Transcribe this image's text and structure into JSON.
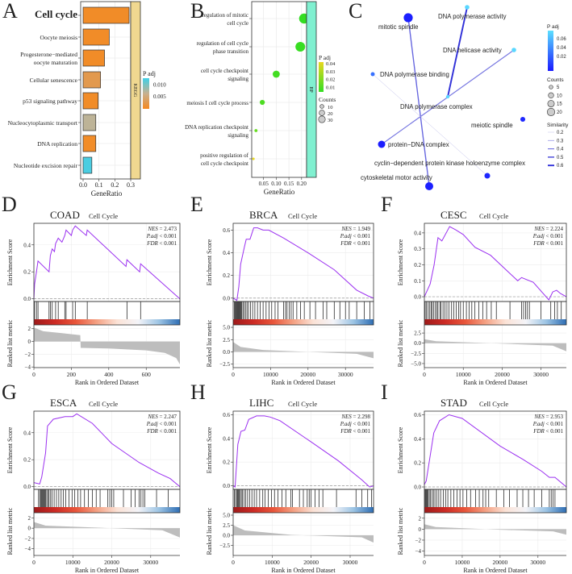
{
  "panel_a": {
    "label": "A",
    "chart_data": {
      "type": "bar",
      "orientation": "horizontal",
      "categories": [
        [
          "Cell cycle"
        ],
        [
          "Oocyte meiosis"
        ],
        [
          "Progesterone−mediated",
          "oocyte maturation"
        ],
        [
          "Cellular senescence"
        ],
        [
          "p53 signaling pathway"
        ],
        [
          "Nucleocytoplasmic transport"
        ],
        [
          "DNA replication"
        ],
        [
          "Nucleotide excision repair"
        ]
      ],
      "values": [
        0.29,
        0.165,
        0.135,
        0.11,
        0.095,
        0.08,
        0.08,
        0.055
      ],
      "p_adj": [
        0.001,
        0.001,
        0.001,
        0.003,
        0.001,
        0.007,
        0.001,
        0.012
      ],
      "highlight_index": 0,
      "highlight_color": "#c0202a",
      "xlabel": "GeneRatio",
      "xticks": [
        "0.0",
        "0.1",
        "0.2",
        "0.3"
      ],
      "xtick_values": [
        0,
        0.1,
        0.2,
        0.3
      ],
      "strip_label": "KEGG",
      "strip_color": "#f0d890",
      "legend": {
        "title": "P adj",
        "ticks": [
          "0.010",
          "0.005"
        ],
        "tick_values": [
          0.01,
          0.005
        ],
        "low_color": "#f5891f",
        "mid_color": "#c8b090",
        "high_color": "#40d0e8",
        "range": [
          0.0005,
          0.0125
        ]
      }
    }
  },
  "panel_b": {
    "label": "B",
    "chart_data": {
      "type": "scatter",
      "categories": [
        [
          "regulation of mitotic",
          "cell cycle"
        ],
        [
          "regulation of cell cycle",
          "phase transition"
        ],
        [
          "cell cycle checkpoint",
          "signaling"
        ],
        [
          "meiosis I cell cycle process"
        ],
        [
          "DNA replication checkpoint",
          "signaling"
        ],
        [
          "positive regulation of",
          "cell cycle checkpoint"
        ]
      ],
      "gene_ratio": [
        0.21,
        0.195,
        0.1,
        0.045,
        0.02,
        0.01
      ],
      "counts": [
        32,
        30,
        16,
        8,
        3,
        2
      ],
      "p_adj": [
        0.005,
        0.006,
        0.008,
        0.01,
        0.015,
        0.04
      ],
      "xlabel": "GeneRatio",
      "xticks": [
        "0.05",
        "0.10",
        "0.15",
        "0.20"
      ],
      "xtick_values": [
        0.05,
        0.1,
        0.15,
        0.2
      ],
      "strip_label": "BP",
      "strip_color": "#80f0d0",
      "legend": {
        "title": "P adj",
        "ticks": [
          "0.04",
          "0.03",
          "0.02",
          "0.01"
        ],
        "tick_values": [
          0.04,
          0.03,
          0.02,
          0.01
        ],
        "low_color": "#33dd22",
        "high_color": "#e8d820",
        "counts_title": "Counts",
        "counts": [
          "10",
          "20",
          "30"
        ],
        "count_values": [
          10,
          20,
          30
        ]
      }
    }
  },
  "panel_c": {
    "label": "C",
    "nodes": [
      {
        "name": "mitotic spindle",
        "p_adj": 0.002,
        "count": 20
      },
      {
        "name": "DNA polymerase activity",
        "p_adj": 0.065,
        "count": 5
      },
      {
        "name": "DNA helicase activity",
        "p_adj": 0.065,
        "count": 5
      },
      {
        "name": "DNA polymerase binding",
        "p_adj": 0.03,
        "count": 4
      },
      {
        "name": "DNA polymerase complex",
        "p_adj": 0.065,
        "count": 3
      },
      {
        "name": "meiotic spindle",
        "p_adj": 0.005,
        "count": 6
      },
      {
        "name": "protein−DNA complex",
        "p_adj": 0.001,
        "count": 13
      },
      {
        "name": "cyclin−dependent protein kinase holoenzyme complex",
        "p_adj": 0.004,
        "count": 8
      },
      {
        "name": "cytoskeletal motor activity",
        "p_adj": 0.002,
        "count": 16
      }
    ],
    "edges": [
      {
        "source": 0,
        "target": 8,
        "similarity": 0.45
      },
      {
        "source": 1,
        "target": 4,
        "similarity": 0.6
      },
      {
        "source": 2,
        "target": 6,
        "similarity": 0.4
      },
      {
        "source": 3,
        "target": 7,
        "similarity": 0.2
      }
    ],
    "legend": {
      "padj_title": "P adj",
      "padj_ticks": [
        "0.06",
        "0.04",
        "0.02"
      ],
      "padj_values": [
        0.06,
        0.04,
        0.02
      ],
      "low_color": "#1a1aff",
      "high_color": "#5ce0ff",
      "counts_title": "Counts",
      "counts": [
        "5",
        "10",
        "15",
        "20"
      ],
      "count_values": [
        5,
        10,
        15,
        20
      ],
      "similarity_title": "Similarity",
      "similarity": [
        "0.2",
        "0.3",
        "0.4",
        "0.5",
        "0.6"
      ],
      "similarity_values": [
        0.2,
        0.3,
        0.4,
        0.5,
        0.6
      ]
    }
  },
  "gsea_common": {
    "gene_set": "Cell Cycle",
    "es_label": "Enrichment Score",
    "rank_label": "Ranked list metric",
    "xlabel": "Rank in Ordered Dataset",
    "nes_label": "NES",
    "padj_label": "P.adj",
    "fdr_label": "FDR",
    "curve_color": "#9b30f0",
    "heat_colors": [
      "#9e1a1a",
      "#cc2a24",
      "#e8553a",
      "#f4a082",
      "#fbe2d6",
      "#f4f4f8",
      "#9cc4e4",
      "#2e6db3"
    ]
  },
  "gsea": [
    {
      "label": "D",
      "cancer": "COAD",
      "nes": "= 2.473",
      "padj": "< 0.001",
      "fdr": "< 0.001",
      "n": 780,
      "xticks": [
        0,
        200,
        400,
        600
      ],
      "es_ylim": [
        -0.02,
        0.56
      ],
      "es_ticks": [
        0.0,
        0.2,
        0.4
      ],
      "es_points": [
        [
          0,
          0
        ],
        [
          4,
          0.11
        ],
        [
          14,
          0.2
        ],
        [
          22,
          0.28
        ],
        [
          81,
          0.2
        ],
        [
          88,
          0.32
        ],
        [
          98,
          0.37
        ],
        [
          110,
          0.35
        ],
        [
          116,
          0.41
        ],
        [
          130,
          0.45
        ],
        [
          150,
          0.42
        ],
        [
          165,
          0.47
        ],
        [
          172,
          0.51
        ],
        [
          200,
          0.47
        ],
        [
          207,
          0.51
        ],
        [
          221,
          0.54
        ],
        [
          280,
          0.47
        ],
        [
          285,
          0.51
        ],
        [
          492,
          0.24
        ],
        [
          497,
          0.29
        ],
        [
          565,
          0.2
        ],
        [
          570,
          0.26
        ],
        [
          780,
          0
        ]
      ],
      "hits": [
        4,
        14,
        22,
        81,
        88,
        98,
        116,
        130,
        165,
        172,
        207,
        221,
        285,
        497,
        570
      ],
      "rank_ylim": [
        -4.1,
        2.6
      ],
      "rank_ticks": [
        -4,
        -2,
        0,
        2
      ],
      "rank_points": [
        [
          0,
          2.2
        ],
        [
          50,
          1.6
        ],
        [
          150,
          1.3
        ],
        [
          248,
          1.0
        ],
        [
          250,
          -1
        ],
        [
          400,
          -1.1
        ],
        [
          600,
          -1.4
        ],
        [
          700,
          -1.8
        ],
        [
          760,
          -2.6
        ],
        [
          780,
          -3.6
        ]
      ]
    },
    {
      "label": "E",
      "cancer": "BRCA",
      "nes": "= 1.949",
      "padj": "< 0.001",
      "fdr": "< 0.001",
      "n": 37500,
      "xticks": [
        0,
        10000,
        20000,
        30000
      ],
      "es_ylim": [
        -0.03,
        0.66
      ],
      "es_ticks": [
        0.0,
        0.2,
        0.4,
        0.6
      ],
      "es_points": [
        [
          0,
          0
        ],
        [
          1000,
          -0.02
        ],
        [
          1500,
          0.1
        ],
        [
          2000,
          0.3
        ],
        [
          3000,
          0.45
        ],
        [
          3500,
          0.52
        ],
        [
          4500,
          0.52
        ],
        [
          5500,
          0.62
        ],
        [
          6500,
          0.62
        ],
        [
          8000,
          0.6
        ],
        [
          9500,
          0.6
        ],
        [
          13500,
          0.53
        ],
        [
          20000,
          0.4
        ],
        [
          27000,
          0.25
        ],
        [
          33000,
          0.07
        ],
        [
          36000,
          0.02
        ],
        [
          37500,
          0
        ]
      ],
      "hits": [
        300,
        500,
        700,
        900,
        1100,
        1300,
        1500,
        1700,
        1900,
        2100,
        2300,
        2600,
        2900,
        3300,
        3700,
        4100,
        4600,
        5200,
        5800,
        6500,
        7200,
        8000,
        8800,
        9600,
        10300,
        11200,
        12000,
        13500,
        14000,
        14400,
        15000,
        15500,
        16000,
        17000,
        18000,
        19000,
        20500,
        22000,
        24000,
        25000,
        27000,
        28500,
        30000,
        31000,
        33000,
        35000,
        36500
      ],
      "rank_ylim": [
        -3.2,
        5.5
      ],
      "rank_ticks": [
        -2.5,
        0.0,
        2.5,
        5.0
      ],
      "rank_points": [
        [
          0,
          2
        ],
        [
          2000,
          1
        ],
        [
          8000,
          0.4
        ],
        [
          20000,
          0
        ],
        [
          33000,
          -0.4
        ],
        [
          37500,
          -1.3
        ]
      ]
    },
    {
      "label": "F",
      "cancer": "CESC",
      "nes": "= 2.224",
      "padj": "< 0.001",
      "fdr": "< 0.001",
      "n": 36500,
      "xticks": [
        0,
        10000,
        20000,
        30000
      ],
      "es_ylim": [
        -0.03,
        0.46
      ],
      "es_ticks": [
        0.0,
        0.1,
        0.2,
        0.3,
        0.4
      ],
      "es_points": [
        [
          0,
          0
        ],
        [
          1500,
          0.08
        ],
        [
          2500,
          0.2
        ],
        [
          3500,
          0.37
        ],
        [
          4500,
          0.35
        ],
        [
          6500,
          0.44
        ],
        [
          8000,
          0.42
        ],
        [
          10000,
          0.39
        ],
        [
          13000,
          0.31
        ],
        [
          17000,
          0.26
        ],
        [
          24000,
          0.1
        ],
        [
          25000,
          0.12
        ],
        [
          28000,
          0.09
        ],
        [
          32000,
          -0.02
        ],
        [
          33000,
          0.03
        ],
        [
          34000,
          0.04
        ],
        [
          35000,
          0.02
        ],
        [
          36500,
          0
        ]
      ],
      "hits": [
        200,
        500,
        900,
        1300,
        1700,
        2000,
        2400,
        2800,
        3200,
        3500,
        4000,
        4300,
        4800,
        5300,
        5800,
        6300,
        7000,
        7600,
        8200,
        8800,
        9300,
        10000,
        10800,
        11500,
        12200,
        13000,
        14000,
        15000,
        16000,
        17200,
        18500,
        22000,
        25000,
        25500,
        26000,
        26500,
        27000,
        30000,
        32500,
        33500,
        34200,
        35200
      ],
      "rank_ylim": [
        -6,
        4.5
      ],
      "rank_ticks": [
        -5.0,
        -2.5,
        0.0,
        2.5
      ],
      "rank_points": [
        [
          0,
          1
        ],
        [
          3000,
          0.5
        ],
        [
          20000,
          -0.1
        ],
        [
          33000,
          -0.6
        ],
        [
          36500,
          -2
        ]
      ]
    },
    {
      "label": "G",
      "cancer": "ESCA",
      "nes": "= 2.247",
      "padj": "< 0.001",
      "fdr": "< 0.001",
      "n": 37500,
      "xticks": [
        0,
        10000,
        20000,
        30000
      ],
      "es_ylim": [
        -0.02,
        0.56
      ],
      "es_ticks": [
        0.0,
        0.2,
        0.4
      ],
      "es_points": [
        [
          0,
          0.03
        ],
        [
          1500,
          0.02
        ],
        [
          2000,
          0.07
        ],
        [
          3000,
          0.25
        ],
        [
          3500,
          0.45
        ],
        [
          5000,
          0.5
        ],
        [
          8000,
          0.52
        ],
        [
          10000,
          0.52
        ],
        [
          11000,
          0.54
        ],
        [
          15000,
          0.47
        ],
        [
          20000,
          0.32
        ],
        [
          27000,
          0.18
        ],
        [
          32000,
          0.1
        ],
        [
          35000,
          0.06
        ],
        [
          37500,
          0
        ]
      ],
      "hits": [
        1200,
        1500,
        1800,
        2000,
        2200,
        2400,
        2600,
        2800,
        3000,
        3300,
        3600,
        3900,
        4300,
        4700,
        5200,
        5800,
        6400,
        7000,
        7600,
        8200,
        9000,
        9800,
        10500,
        11300,
        12000,
        13000,
        14000,
        15000,
        16000,
        17000,
        19000,
        19500,
        20000,
        20500,
        23000,
        25000,
        26000,
        27000,
        27500,
        28000,
        28500,
        31500,
        34500
      ],
      "rank_ylim": [
        -5.3,
        3
      ],
      "rank_ticks": [
        -4,
        -2,
        0,
        2
      ],
      "rank_points": [
        [
          0,
          1.2
        ],
        [
          3000,
          0.5
        ],
        [
          20000,
          0
        ],
        [
          33000,
          -0.4
        ],
        [
          37500,
          -1.8
        ]
      ]
    },
    {
      "label": "H",
      "cancer": "LIHC",
      "nes": "= 2.298",
      "padj": "< 0.001",
      "fdr": "< 0.001",
      "n": 36000,
      "xticks": [
        0,
        10000,
        20000,
        30000
      ],
      "es_ylim": [
        -0.03,
        0.63
      ],
      "es_ticks": [
        0.0,
        0.2,
        0.4,
        0.6
      ],
      "es_points": [
        [
          0,
          0
        ],
        [
          500,
          -0.01
        ],
        [
          1200,
          0.35
        ],
        [
          2000,
          0.46
        ],
        [
          3000,
          0.47
        ],
        [
          4000,
          0.56
        ],
        [
          6000,
          0.59
        ],
        [
          8000,
          0.59
        ],
        [
          9500,
          0.58
        ],
        [
          12000,
          0.55
        ],
        [
          20000,
          0.37
        ],
        [
          27000,
          0.21
        ],
        [
          33000,
          0.05
        ],
        [
          35000,
          -0.01
        ],
        [
          36000,
          0
        ]
      ],
      "hits": [
        300,
        600,
        900,
        1100,
        1300,
        1500,
        1800,
        2100,
        2400,
        2800,
        3200,
        3700,
        4200,
        4800,
        5400,
        6000,
        6800,
        7600,
        8200,
        9000,
        9800,
        10600,
        11500,
        12500,
        13500,
        14800,
        15200,
        17000,
        18000,
        19000,
        19500,
        20000,
        21000,
        22000,
        23000,
        26500,
        31500,
        33000,
        34500,
        35500
      ],
      "rank_ylim": [
        -5,
        5.6
      ],
      "rank_ticks": [
        -2.5,
        0.0,
        2.5,
        5.0
      ],
      "rank_points": [
        [
          0,
          2.5
        ],
        [
          3000,
          1.2
        ],
        [
          15000,
          0.1
        ],
        [
          33000,
          -0.5
        ],
        [
          36000,
          -1.8
        ]
      ]
    },
    {
      "label": "I",
      "cancer": "STAD",
      "nes": "= 2.953",
      "padj": "< 0.001",
      "fdr": "< 0.001",
      "n": 37500,
      "xticks": [
        0,
        10000,
        20000,
        30000
      ],
      "es_ylim": [
        -0.02,
        0.63
      ],
      "es_ticks": [
        0.0,
        0.2,
        0.4,
        0.6
      ],
      "es_points": [
        [
          0,
          0.02
        ],
        [
          500,
          0.05
        ],
        [
          1500,
          0.25
        ],
        [
          2500,
          0.45
        ],
        [
          4000,
          0.55
        ],
        [
          6500,
          0.6
        ],
        [
          10000,
          0.57
        ],
        [
          20000,
          0.34
        ],
        [
          26000,
          0.23
        ],
        [
          31000,
          0.13
        ],
        [
          33000,
          0.08
        ],
        [
          34500,
          0.08
        ],
        [
          37500,
          0
        ]
      ],
      "hits": [
        200,
        400,
        600,
        800,
        1000,
        1300,
        1600,
        2000,
        2400,
        2800,
        3300,
        3800,
        4300,
        5000,
        5600,
        6200,
        7000,
        7800,
        8600,
        9400,
        10200,
        11200,
        12200,
        13500,
        14500,
        15500,
        16200,
        17000,
        19000,
        21000,
        22500,
        24500,
        26000,
        27500,
        29000,
        31000,
        33000,
        33500,
        34000,
        34500
      ],
      "rank_ylim": [
        -4.8,
        3
      ],
      "rank_ticks": [
        -4,
        -2,
        0,
        2
      ],
      "rank_points": [
        [
          0,
          0.9
        ],
        [
          3000,
          0.4
        ],
        [
          20000,
          -0.1
        ],
        [
          34000,
          -0.4
        ],
        [
          37500,
          -1
        ]
      ]
    }
  ]
}
